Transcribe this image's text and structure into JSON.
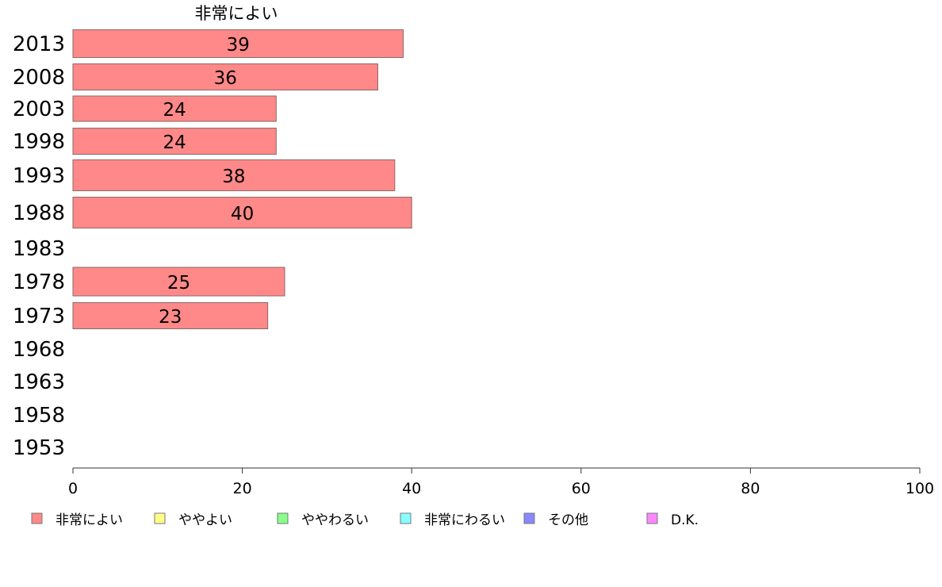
{
  "chart_data": {
    "type": "bar",
    "orientation": "horizontal",
    "title": "非常によい",
    "categories": [
      "2013",
      "2008",
      "2003",
      "1998",
      "1993",
      "1988",
      "1983",
      "1978",
      "1973",
      "1968",
      "1963",
      "1958",
      "1953"
    ],
    "series": [
      {
        "name": "非常によい",
        "color": "#ff8888",
        "values": [
          39,
          36,
          24,
          24,
          38,
          40,
          null,
          25,
          23,
          null,
          null,
          null,
          null
        ]
      }
    ],
    "xlim": [
      0,
      100
    ],
    "xticks": [
      "0",
      "20",
      "40",
      "60",
      "80",
      "100"
    ],
    "legend": [
      {
        "label": "非常によい",
        "color": "#ff8888"
      },
      {
        "label": "ややよい",
        "color": "#ffff88"
      },
      {
        "label": "ややわるい",
        "color": "#88ff88"
      },
      {
        "label": "非常にわるい",
        "color": "#88ffff"
      },
      {
        "label": "その他",
        "color": "#8888ff"
      },
      {
        "label": "D.K.",
        "color": "#ff88ff"
      }
    ],
    "legend_position": "bottom",
    "grid": false
  }
}
